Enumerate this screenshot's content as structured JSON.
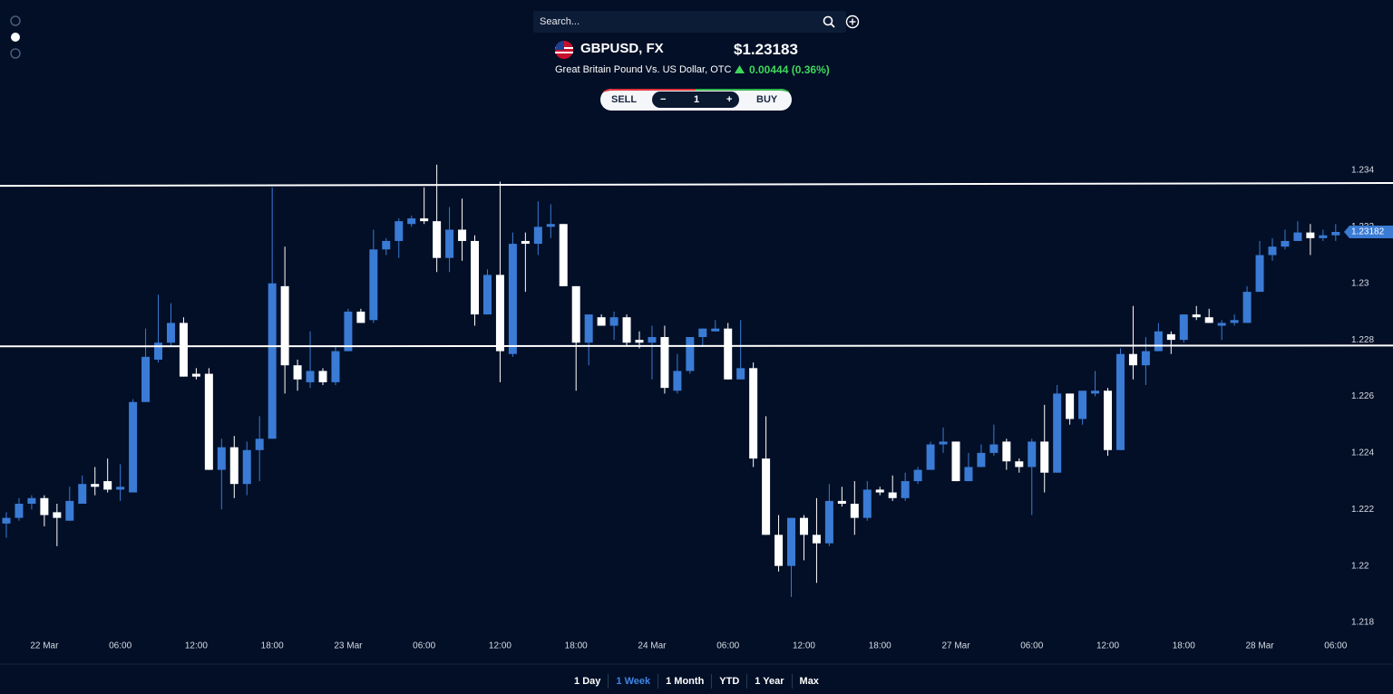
{
  "search": {
    "placeholder": "Search..."
  },
  "header": {
    "symbol": "GBPUSD, FX",
    "description": "Great Britain Pound Vs. US Dollar, OTC",
    "price": "$1.23183",
    "change": "0.00444 (0.36%)"
  },
  "trade": {
    "sell": "SELL",
    "minus": "−",
    "quantity": "1",
    "plus": "+",
    "buy": "BUY"
  },
  "ranges": [
    "1 Day",
    "1 Week",
    "1 Month",
    "YTD",
    "1 Year",
    "Max"
  ],
  "chart_data": {
    "type": "candlestick",
    "up_color": "#3a7bd5",
    "down_color": "#ffffff",
    "categories": [
      null,
      null,
      null,
      "22 Mar",
      null,
      null,
      null,
      null,
      null,
      "06:00",
      null,
      null,
      null,
      null,
      null,
      "12:00",
      null,
      null,
      null,
      null,
      null,
      "18:00",
      null,
      null,
      null,
      null,
      null,
      "23 Mar",
      null,
      null,
      null,
      null,
      null,
      "06:00",
      null,
      null,
      null,
      null,
      null,
      "12:00",
      null,
      null,
      null,
      null,
      null,
      "18:00",
      null,
      null,
      null,
      null,
      null,
      "24 Mar",
      null,
      null,
      null,
      null,
      null,
      "06:00",
      null,
      null,
      null,
      null,
      null,
      "12:00",
      null,
      null,
      null,
      null,
      null,
      "18:00",
      null,
      null,
      null,
      null,
      null,
      "27 Mar",
      null,
      null,
      null,
      null,
      null,
      "06:00",
      null,
      null,
      null,
      null,
      null,
      "12:00",
      null,
      null,
      null,
      null,
      null,
      "18:00",
      null,
      null,
      null,
      null,
      null,
      "28 Mar",
      null,
      null,
      null,
      null,
      null,
      "06:00"
    ],
    "open": [
      1.2215,
      1.2217,
      1.2222,
      1.2224,
      1.2219,
      1.2216,
      1.2222,
      1.2229,
      1.223,
      1.2227,
      1.2226,
      1.2258,
      1.2273,
      1.2279,
      1.2286,
      1.2268,
      1.2268,
      1.2234,
      1.2242,
      1.2229,
      1.2241,
      1.2245,
      1.2299,
      1.2271,
      1.2265,
      1.2269,
      1.2265,
      1.2276,
      1.229,
      1.2287,
      1.2312,
      1.2315,
      1.2321,
      1.2323,
      1.2322,
      1.2309,
      1.2319,
      1.2315,
      1.2289,
      1.2303,
      1.2275,
      1.2315,
      1.2314,
      1.232,
      1.2321,
      1.2299,
      1.2279,
      1.2288,
      1.2285,
      1.2288,
      1.228,
      1.2279,
      1.2281,
      1.2262,
      1.2269,
      1.2281,
      1.2283,
      1.2284,
      1.2266,
      1.227,
      1.2238,
      1.2211,
      1.22,
      1.2217,
      1.2211,
      1.2208,
      1.2223,
      1.2222,
      1.2217,
      1.2227,
      1.2226,
      1.2224,
      1.223,
      1.2234,
      1.2243,
      1.2244,
      1.223,
      1.2235,
      1.224,
      1.2244,
      1.2237,
      1.2235,
      1.2244,
      1.2233,
      1.2261,
      1.2252,
      1.2261,
      1.2262,
      1.2241,
      1.2275,
      1.2271,
      1.2276,
      1.2282,
      1.228,
      1.2289,
      1.2288,
      1.2285,
      1.2286,
      1.2286,
      1.2297,
      1.231,
      1.2313,
      1.2315,
      1.2318,
      1.2316,
      1.2317
    ],
    "high": [
      1.2219,
      1.2224,
      1.2225,
      1.2225,
      1.2222,
      1.2228,
      1.2232,
      1.2235,
      1.2238,
      1.2236,
      1.2259,
      1.2284,
      1.2296,
      1.2293,
      1.2288,
      1.227,
      1.227,
      1.2245,
      1.2246,
      1.2244,
      1.2253,
      1.2334,
      1.2313,
      1.2273,
      1.2283,
      1.227,
      1.2278,
      1.2291,
      1.2291,
      1.2319,
      1.2316,
      1.2323,
      1.2324,
      1.2334,
      1.2342,
      1.2327,
      1.233,
      1.2317,
      1.2305,
      1.2336,
      1.2318,
      1.2318,
      1.2329,
      1.2328,
      1.2321,
      1.2299,
      1.2289,
      1.2289,
      1.229,
      1.2289,
      1.2283,
      1.2285,
      1.2285,
      1.2275,
      1.2281,
      1.2284,
      1.2287,
      1.2286,
      1.2287,
      1.2272,
      1.2253,
      1.2218,
      1.2217,
      1.2218,
      1.2224,
      1.2229,
      1.2228,
      1.223,
      1.223,
      1.2228,
      1.2232,
      1.2233,
      1.2235,
      1.2244,
      1.2249,
      1.2244,
      1.224,
      1.2243,
      1.225,
      1.2245,
      1.2238,
      1.2245,
      1.2257,
      1.2264,
      1.2261,
      1.2262,
      1.2269,
      1.2263,
      1.2277,
      1.2292,
      1.2281,
      1.2286,
      1.2283,
      1.2289,
      1.2292,
      1.2291,
      1.2287,
      1.2289,
      1.2299,
      1.2315,
      1.2316,
      1.2319,
      1.2322,
      1.2321,
      1.2319,
      1.2321
    ],
    "low": [
      1.221,
      1.2216,
      1.222,
      1.2214,
      1.2207,
      1.2216,
      1.2222,
      1.2225,
      1.2226,
      1.2223,
      1.2226,
      1.2258,
      1.2272,
      1.2278,
      1.2267,
      1.2266,
      1.2234,
      1.222,
      1.2224,
      1.2225,
      1.223,
      1.2245,
      1.2261,
      1.2262,
      1.2263,
      1.2264,
      1.2264,
      1.2276,
      1.2286,
      1.2286,
      1.231,
      1.2309,
      1.232,
      1.2321,
      1.2304,
      1.2304,
      1.2308,
      1.2285,
      1.2289,
      1.2265,
      1.2274,
      1.2297,
      1.231,
      1.2316,
      1.2299,
      1.2262,
      1.2271,
      1.2285,
      1.228,
      1.2278,
      1.2277,
      1.2266,
      1.2261,
      1.2261,
      1.2268,
      1.2278,
      1.2283,
      1.2266,
      1.2266,
      1.2235,
      1.2211,
      1.2198,
      1.2189,
      1.2202,
      1.2194,
      1.2207,
      1.2221,
      1.2211,
      1.2216,
      1.2225,
      1.2223,
      1.2223,
      1.2229,
      1.2234,
      1.224,
      1.223,
      1.223,
      1.2235,
      1.2239,
      1.2234,
      1.2233,
      1.2218,
      1.2226,
      1.2233,
      1.225,
      1.225,
      1.226,
      1.2239,
      1.2241,
      1.2266,
      1.2264,
      1.2276,
      1.2275,
      1.2279,
      1.2287,
      1.2286,
      1.228,
      1.2285,
      1.2286,
      1.2297,
      1.2308,
      1.2312,
      1.2315,
      1.231,
      1.2315,
      1.2315
    ],
    "close": [
      1.2217,
      1.2222,
      1.2224,
      1.2218,
      1.2217,
      1.2223,
      1.2229,
      1.2228,
      1.2227,
      1.2228,
      1.2258,
      1.2274,
      1.2279,
      1.2286,
      1.2267,
      1.2267,
      1.2234,
      1.2242,
      1.2229,
      1.2241,
      1.2245,
      1.23,
      1.2271,
      1.2266,
      1.2269,
      1.2265,
      1.2276,
      1.229,
      1.2286,
      1.2312,
      1.2315,
      1.2322,
      1.2323,
      1.2322,
      1.2309,
      1.2319,
      1.2315,
      1.2289,
      1.2303,
      1.2276,
      1.2314,
      1.2314,
      1.232,
      1.2321,
      1.2299,
      1.2279,
      1.2289,
      1.2285,
      1.2288,
      1.2279,
      1.2279,
      1.2281,
      1.2263,
      1.2269,
      1.2281,
      1.2284,
      1.2284,
      1.2266,
      1.227,
      1.2238,
      1.2211,
      1.22,
      1.2217,
      1.2211,
      1.2208,
      1.2223,
      1.2222,
      1.2217,
      1.2227,
      1.2226,
      1.2224,
      1.223,
      1.2234,
      1.2243,
      1.2244,
      1.223,
      1.2235,
      1.224,
      1.2243,
      1.2237,
      1.2235,
      1.2244,
      1.2233,
      1.2261,
      1.2252,
      1.2262,
      1.2262,
      1.2241,
      1.2275,
      1.2271,
      1.2276,
      1.2283,
      1.228,
      1.2289,
      1.2288,
      1.2286,
      1.2286,
      1.2287,
      1.2297,
      1.231,
      1.2313,
      1.2315,
      1.2318,
      1.2316,
      1.2317,
      1.23182
    ],
    "ylim": [
      1.218,
      1.234
    ],
    "yticks": [
      1.218,
      1.22,
      1.222,
      1.224,
      1.226,
      1.228,
      1.23,
      1.232,
      1.234
    ],
    "grid": false,
    "trend_lines": [
      [
        1.23345,
        1.23355
      ],
      [
        1.22777,
        1.2278
      ]
    ],
    "last_price": 1.23182
  }
}
